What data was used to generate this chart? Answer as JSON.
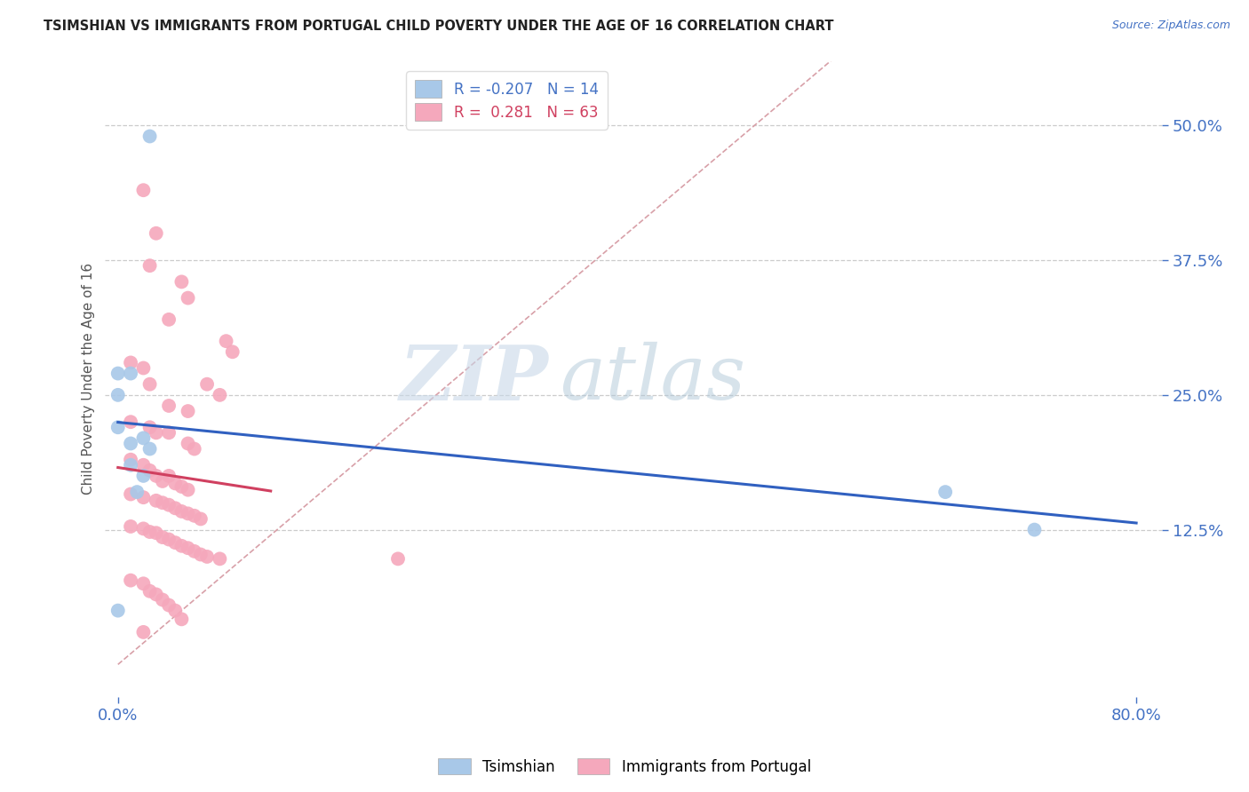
{
  "title": "TSIMSHIAN VS IMMIGRANTS FROM PORTUGAL CHILD POVERTY UNDER THE AGE OF 16 CORRELATION CHART",
  "source_text": "Source: ZipAtlas.com",
  "ylabel": "Child Poverty Under the Age of 16",
  "xlim": [
    -0.01,
    0.82
  ],
  "ylim": [
    -0.03,
    0.56
  ],
  "ytick_positions": [
    0.125,
    0.25,
    0.375,
    0.5
  ],
  "ytick_labels": [
    "12.5%",
    "25.0%",
    "37.5%",
    "50.0%"
  ],
  "xtick_positions": [
    0.0,
    0.8
  ],
  "xtick_labels": [
    "0.0%",
    "80.0%"
  ],
  "legend_tsimshian": "Tsimshian",
  "legend_portugal": "Immigrants from Portugal",
  "tsimshian_color": "#a8c8e8",
  "portugal_color": "#f5a8bc",
  "tsimshian_line_color": "#3060c0",
  "portugal_line_color": "#d04060",
  "tsimshian_R": -0.207,
  "tsimshian_N": 14,
  "portugal_R": 0.281,
  "portugal_N": 63,
  "diagonal_color": "#d8a0a8",
  "watermark_zip": "ZIP",
  "watermark_atlas": "atlas",
  "tsimshian_points": [
    [
      0.025,
      0.49
    ],
    [
      0.0,
      0.27
    ],
    [
      0.0,
      0.25
    ],
    [
      0.01,
      0.27
    ],
    [
      0.0,
      0.22
    ],
    [
      0.01,
      0.205
    ],
    [
      0.02,
      0.21
    ],
    [
      0.025,
      0.2
    ],
    [
      0.01,
      0.185
    ],
    [
      0.02,
      0.175
    ],
    [
      0.015,
      0.16
    ],
    [
      0.65,
      0.16
    ],
    [
      0.72,
      0.125
    ],
    [
      0.0,
      0.05
    ]
  ],
  "portugal_points": [
    [
      0.02,
      0.44
    ],
    [
      0.03,
      0.4
    ],
    [
      0.025,
      0.37
    ],
    [
      0.05,
      0.355
    ],
    [
      0.055,
      0.34
    ],
    [
      0.04,
      0.32
    ],
    [
      0.085,
      0.3
    ],
    [
      0.09,
      0.29
    ],
    [
      0.01,
      0.28
    ],
    [
      0.02,
      0.275
    ],
    [
      0.025,
      0.26
    ],
    [
      0.07,
      0.26
    ],
    [
      0.08,
      0.25
    ],
    [
      0.04,
      0.24
    ],
    [
      0.055,
      0.235
    ],
    [
      0.01,
      0.225
    ],
    [
      0.025,
      0.22
    ],
    [
      0.03,
      0.215
    ],
    [
      0.04,
      0.215
    ],
    [
      0.055,
      0.205
    ],
    [
      0.06,
      0.2
    ],
    [
      0.01,
      0.19
    ],
    [
      0.02,
      0.185
    ],
    [
      0.025,
      0.18
    ],
    [
      0.03,
      0.175
    ],
    [
      0.04,
      0.175
    ],
    [
      0.035,
      0.17
    ],
    [
      0.045,
      0.168
    ],
    [
      0.05,
      0.165
    ],
    [
      0.055,
      0.162
    ],
    [
      0.01,
      0.158
    ],
    [
      0.02,
      0.155
    ],
    [
      0.03,
      0.152
    ],
    [
      0.035,
      0.15
    ],
    [
      0.04,
      0.148
    ],
    [
      0.045,
      0.145
    ],
    [
      0.05,
      0.142
    ],
    [
      0.055,
      0.14
    ],
    [
      0.06,
      0.138
    ],
    [
      0.065,
      0.135
    ],
    [
      0.01,
      0.128
    ],
    [
      0.02,
      0.126
    ],
    [
      0.025,
      0.123
    ],
    [
      0.03,
      0.122
    ],
    [
      0.035,
      0.118
    ],
    [
      0.04,
      0.116
    ],
    [
      0.045,
      0.113
    ],
    [
      0.05,
      0.11
    ],
    [
      0.055,
      0.108
    ],
    [
      0.06,
      0.105
    ],
    [
      0.065,
      0.102
    ],
    [
      0.07,
      0.1
    ],
    [
      0.08,
      0.098
    ],
    [
      0.22,
      0.098
    ],
    [
      0.01,
      0.078
    ],
    [
      0.02,
      0.075
    ],
    [
      0.025,
      0.068
    ],
    [
      0.03,
      0.065
    ],
    [
      0.035,
      0.06
    ],
    [
      0.04,
      0.055
    ],
    [
      0.045,
      0.05
    ],
    [
      0.05,
      0.042
    ],
    [
      0.02,
      0.03
    ]
  ]
}
